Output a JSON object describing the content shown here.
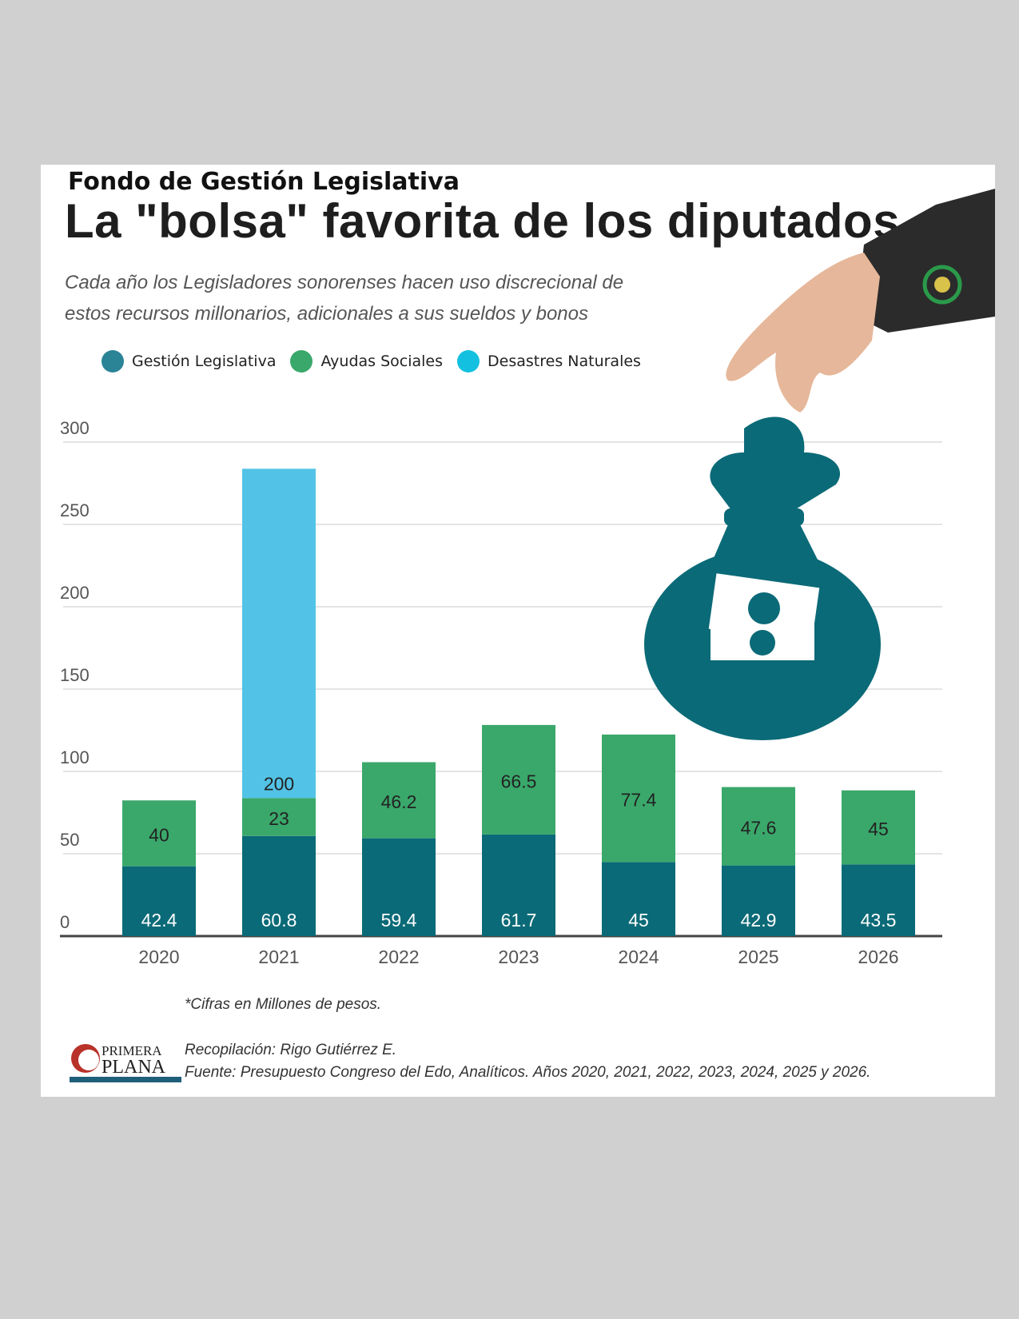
{
  "header": {
    "supertitle": "Fondo de Gestión Legislativa",
    "title": "La \"bolsa\" favorita de los diputados",
    "subtitle": "Cada año los Legisladores sonorenses hacen uso discrecional de estos recursos millonarios, adicionales a sus sueldos y bonos"
  },
  "colors": {
    "gestion": "#0b6a77",
    "ayudas": "#3aa86b",
    "desastres": "#52c3e6",
    "legend_gestion": "#2a8496",
    "legend_desastres": "#14c0e0"
  },
  "chart_data": {
    "type": "bar",
    "stacked": true,
    "categories": [
      "2020",
      "2021",
      "2022",
      "2023",
      "2024",
      "2025",
      "2026"
    ],
    "series": [
      {
        "name": "Gestión Legislativa",
        "values": [
          42.4,
          60.8,
          59.4,
          61.7,
          45,
          42.9,
          43.5
        ]
      },
      {
        "name": "Ayudas Sociales",
        "values": [
          40,
          23,
          46.2,
          66.5,
          77.4,
          47.6,
          45
        ]
      },
      {
        "name": "Desastres Naturales",
        "values": [
          0,
          200,
          0,
          0,
          0,
          0,
          0
        ]
      }
    ],
    "data_labels": [
      [
        "42.4",
        "60.8",
        "59.4",
        "61.7",
        "45",
        "42.9",
        "43.5"
      ],
      [
        "40",
        "23",
        "46.2",
        "66.5",
        "77.4",
        "47.6",
        "45"
      ],
      [
        "",
        "200",
        "",
        "",
        "",
        "",
        ""
      ]
    ],
    "ylim": [
      0,
      300
    ],
    "yticks": [
      "0",
      "50",
      "100",
      "150",
      "200",
      "250",
      "300"
    ],
    "grid": true,
    "legend": "top-left"
  },
  "footer": {
    "note": "*Cifras en Millones de pesos.",
    "credit": "Recopilación: Rigo Gutiérrez E.",
    "source": "Fuente: Presupuesto Congreso del Edo, Analíticos. Años 2020, 2021, 2022, 2023, 2024, 2025 y 2026.",
    "logo_text": "PRIMERA PLANA"
  }
}
